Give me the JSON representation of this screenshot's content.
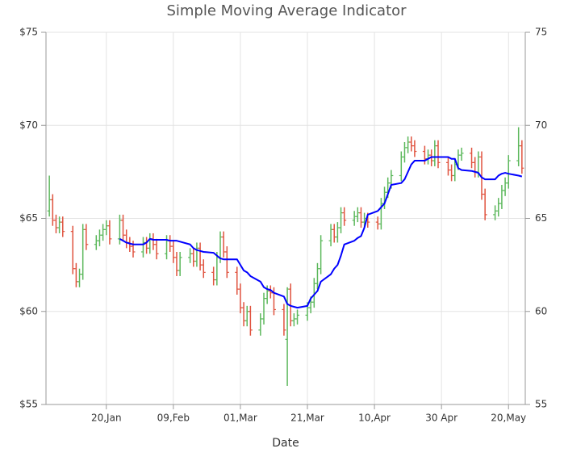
{
  "chart_data": {
    "type": "ohlc",
    "title": "Simple Moving Average Indicator",
    "x_label": "Date",
    "x": [
      "01-03",
      "01-04",
      "01-05",
      "01-06",
      "01-07",
      "01-10",
      "01-11",
      "01-12",
      "01-13",
      "01-14",
      "01-17",
      "01-18",
      "01-19",
      "01-20",
      "01-21",
      "01-24",
      "01-25",
      "01-26",
      "01-27",
      "01-28",
      "01-31",
      "02-01",
      "02-02",
      "02-03",
      "02-04",
      "02-07",
      "02-08",
      "02-09",
      "02-10",
      "02-11",
      "02-14",
      "02-15",
      "02-16",
      "02-17",
      "02-18",
      "02-21",
      "02-22",
      "02-23",
      "02-24",
      "02-25",
      "02-28",
      "03-01",
      "03-02",
      "03-03",
      "03-04",
      "03-07",
      "03-08",
      "03-09",
      "03-10",
      "03-11",
      "03-14",
      "03-15",
      "03-16",
      "03-17",
      "03-18",
      "03-21",
      "03-22",
      "03-23",
      "03-24",
      "03-25",
      "03-28",
      "03-29",
      "03-30",
      "03-31",
      "04-01",
      "04-04",
      "04-05",
      "04-06",
      "04-07",
      "04-08",
      "04-11",
      "04-12",
      "04-13",
      "04-14",
      "04-15",
      "04-18",
      "04-19",
      "04-20",
      "04-21",
      "04-22",
      "04-25",
      "04-26",
      "04-27",
      "04-28",
      "04-29",
      "05-02",
      "05-03",
      "05-04",
      "05-05",
      "05-06",
      "05-09",
      "05-10",
      "05-11",
      "05-12",
      "05-13",
      "05-16",
      "05-17",
      "05-18",
      "05-19",
      "05-20",
      "05-23",
      "05-24"
    ],
    "open": [
      65.4,
      66.0,
      64.9,
      64.5,
      64.8,
      64.3,
      62.3,
      61.6,
      62.0,
      64.4,
      63.6,
      63.8,
      64.1,
      64.4,
      64.6,
      63.9,
      64.9,
      64.1,
      63.7,
      63.5,
      63.2,
      63.7,
      63.4,
      63.9,
      63.6,
      63.1,
      63.8,
      63.5,
      62.9,
      62.2,
      62.9,
      63.1,
      62.7,
      63.4,
      62.5,
      62.1,
      61.7,
      62.9,
      64.0,
      63.2,
      62.1,
      61.2,
      60.2,
      59.5,
      60.0,
      59.0,
      59.6,
      60.7,
      61.1,
      61.0,
      60.1,
      58.5,
      61.2,
      59.5,
      59.6,
      59.8,
      60.2,
      60.5,
      61.5,
      62.3,
      63.8,
      64.4,
      64.0,
      64.5,
      65.3,
      64.9,
      65.1,
      65.3,
      64.8,
      65.0,
      64.8,
      64.7,
      65.8,
      66.4,
      66.9,
      67.3,
      68.3,
      68.8,
      69.1,
      68.9,
      68.6,
      68.2,
      68.4,
      68.1,
      68.9,
      68.0,
      67.6,
      67.3,
      67.9,
      68.4,
      68.5,
      68.0,
      67.5,
      68.3,
      66.3,
      65.2,
      65.4,
      65.8,
      66.5,
      66.9,
      68.1,
      68.9
    ],
    "high": [
      67.3,
      66.3,
      65.2,
      65.1,
      65.1,
      64.6,
      62.6,
      62.3,
      64.7,
      64.7,
      64.1,
      64.4,
      64.7,
      64.9,
      64.9,
      65.2,
      65.2,
      64.4,
      64.0,
      63.8,
      64.0,
      64.0,
      64.2,
      64.2,
      63.9,
      64.1,
      64.1,
      63.8,
      63.2,
      63.2,
      63.4,
      63.4,
      63.7,
      63.7,
      62.8,
      62.4,
      63.2,
      64.3,
      64.3,
      63.5,
      62.4,
      61.5,
      60.5,
      60.3,
      60.3,
      59.9,
      61.0,
      61.4,
      61.4,
      61.3,
      60.4,
      61.3,
      61.5,
      59.9,
      60.1,
      60.5,
      60.8,
      61.8,
      62.6,
      64.1,
      64.7,
      64.7,
      64.8,
      65.6,
      65.6,
      65.4,
      65.6,
      65.6,
      65.3,
      65.3,
      65.1,
      66.1,
      66.7,
      67.2,
      67.6,
      68.6,
      69.1,
      69.4,
      69.4,
      69.2,
      68.9,
      68.7,
      68.7,
      69.2,
      69.2,
      68.3,
      67.9,
      68.2,
      68.7,
      68.8,
      68.8,
      68.3,
      68.6,
      68.6,
      66.6,
      65.7,
      66.1,
      66.8,
      67.2,
      68.4,
      69.9,
      69.2
    ],
    "low": [
      65.1,
      64.6,
      64.2,
      64.2,
      64.0,
      62.0,
      61.3,
      61.3,
      61.7,
      63.3,
      63.3,
      63.5,
      63.8,
      64.1,
      63.6,
      63.6,
      63.8,
      63.4,
      63.2,
      62.9,
      62.9,
      63.1,
      63.1,
      63.3,
      62.8,
      62.8,
      63.2,
      62.6,
      61.9,
      61.9,
      62.6,
      62.4,
      62.4,
      62.2,
      61.8,
      61.4,
      61.4,
      62.6,
      62.9,
      61.8,
      60.9,
      59.9,
      59.2,
      59.2,
      58.7,
      58.7,
      59.3,
      60.4,
      60.7,
      59.8,
      58.7,
      56.0,
      59.2,
      59.2,
      59.3,
      59.5,
      59.9,
      60.2,
      61.2,
      62.0,
      63.5,
      63.7,
      63.7,
      64.2,
      64.6,
      64.6,
      64.8,
      64.5,
      64.5,
      64.5,
      64.4,
      64.4,
      65.5,
      66.1,
      66.6,
      67.0,
      68.0,
      68.5,
      68.6,
      68.3,
      67.9,
      67.9,
      67.8,
      67.8,
      67.7,
      67.3,
      67.0,
      67.0,
      67.6,
      68.1,
      67.7,
      67.2,
      67.2,
      66.0,
      64.9,
      64.9,
      65.1,
      65.5,
      66.2,
      66.6,
      67.8,
      67.4
    ],
    "close": [
      66.0,
      64.9,
      64.5,
      64.8,
      64.3,
      62.3,
      61.6,
      62.0,
      64.4,
      63.6,
      63.8,
      64.1,
      64.4,
      64.6,
      63.9,
      64.9,
      64.1,
      63.7,
      63.5,
      63.2,
      63.7,
      63.4,
      63.9,
      63.6,
      63.1,
      63.8,
      63.5,
      62.9,
      62.2,
      62.9,
      63.1,
      62.7,
      63.4,
      62.5,
      62.1,
      61.7,
      62.9,
      64.0,
      63.2,
      62.1,
      61.2,
      60.2,
      59.5,
      60.0,
      59.0,
      59.6,
      60.7,
      61.1,
      61.0,
      60.1,
      59.0,
      61.2,
      59.5,
      59.6,
      59.8,
      60.2,
      60.5,
      61.5,
      62.3,
      63.8,
      64.4,
      64.0,
      64.5,
      65.3,
      64.9,
      65.1,
      65.3,
      64.8,
      65.0,
      64.8,
      64.7,
      65.8,
      66.4,
      66.9,
      67.3,
      68.3,
      68.8,
      69.1,
      68.9,
      68.6,
      68.2,
      68.4,
      68.1,
      68.9,
      68.0,
      67.6,
      67.3,
      67.9,
      68.4,
      68.5,
      68.0,
      67.5,
      68.3,
      66.3,
      65.2,
      65.4,
      65.8,
      66.5,
      66.9,
      68.1,
      68.9,
      67.7
    ],
    "sma": [
      null,
      null,
      null,
      null,
      null,
      null,
      null,
      null,
      null,
      null,
      null,
      null,
      null,
      null,
      null,
      63.9,
      63.8,
      63.7,
      63.65,
      63.6,
      63.6,
      63.7,
      63.9,
      63.85,
      63.85,
      63.85,
      63.8,
      63.8,
      63.8,
      63.75,
      63.6,
      63.4,
      63.3,
      63.25,
      63.2,
      63.15,
      63.0,
      62.85,
      62.8,
      62.8,
      62.8,
      62.5,
      62.2,
      62.1,
      61.9,
      61.6,
      61.3,
      61.2,
      61.15,
      61.0,
      60.8,
      60.4,
      60.3,
      60.25,
      60.2,
      60.3,
      60.7,
      60.9,
      61.1,
      61.6,
      62.0,
      62.3,
      62.5,
      63.0,
      63.6,
      63.8,
      63.95,
      64.05,
      64.5,
      65.2,
      65.4,
      65.6,
      65.8,
      66.3,
      66.8,
      66.9,
      67.1,
      67.5,
      67.9,
      68.1,
      68.1,
      68.2,
      68.3,
      68.3,
      68.3,
      68.3,
      68.2,
      68.2,
      67.7,
      67.6,
      67.55,
      67.5,
      67.45,
      67.2,
      67.1,
      67.1,
      67.3,
      67.4,
      67.45,
      67.4,
      67.3,
      67.25
    ],
    "up_color": "#5cb85c",
    "down_color": "#e0533f",
    "sma_color": "#0000ff",
    "xlim": [
      "01-02",
      "05-25"
    ],
    "xticks": [
      {
        "value": "01-20",
        "label": "20,Jan"
      },
      {
        "value": "02-09",
        "label": "09,Feb"
      },
      {
        "value": "03-01",
        "label": "01,Mar"
      },
      {
        "value": "03-21",
        "label": "21,Mar"
      },
      {
        "value": "04-10",
        "label": "10,Apr"
      },
      {
        "value": "04-30",
        "label": "30 Apr"
      },
      {
        "value": "05-20",
        "label": "20,May"
      }
    ],
    "ylim": [
      55,
      75
    ],
    "yticks": [
      {
        "value": 55,
        "label": "$55"
      },
      {
        "value": 60,
        "label": "$60"
      },
      {
        "value": 65,
        "label": "$65"
      },
      {
        "value": 70,
        "label": "$70"
      },
      {
        "value": 75,
        "label": "$75"
      }
    ],
    "y2lim": [
      55,
      75
    ],
    "y2ticks": [
      55,
      60,
      65,
      70,
      75
    ],
    "grid": true
  }
}
